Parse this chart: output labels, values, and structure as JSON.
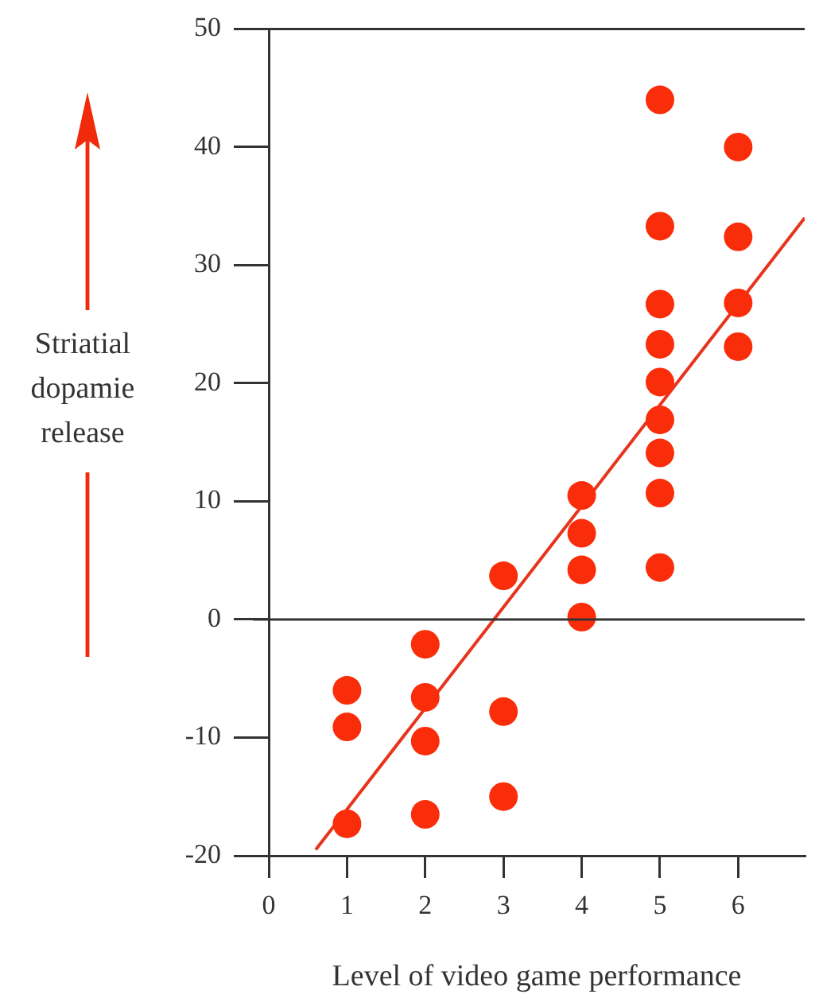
{
  "chart_data": {
    "type": "scatter",
    "xlabel": "Level of video game performance",
    "ylabel": "Striatial dopamie release",
    "xlim": [
      0,
      6.85
    ],
    "ylim": [
      -20,
      50
    ],
    "xticks": [
      0,
      1,
      2,
      3,
      4,
      5,
      6
    ],
    "yticks": [
      -20,
      -10,
      0,
      10,
      20,
      30,
      40,
      50
    ],
    "grid": false,
    "legend": false,
    "marker": "circle",
    "ref_lines": [
      {
        "axis": "y",
        "value": 0,
        "color": "#333333"
      }
    ],
    "series": [
      {
        "color": "#fa2d0a",
        "x": [
          1,
          1,
          1,
          2,
          2,
          2,
          2,
          3,
          3,
          3,
          4,
          4,
          4,
          4,
          5,
          5,
          5,
          5,
          5,
          5,
          5,
          5,
          5,
          6,
          6,
          6,
          6
        ],
        "values": [
          -6,
          -9.1,
          -17.3,
          -2.1,
          -6.6,
          -10.3,
          -16.5,
          3.7,
          -7.8,
          -15,
          10.5,
          7.3,
          4.2,
          0.2,
          44,
          33.3,
          26.7,
          23.3,
          20.1,
          16.9,
          14.1,
          10.7,
          4.4,
          40,
          32.4,
          26.8,
          23.1
        ]
      },
      {
        "type": "line",
        "color": "#e8341c",
        "x": [
          0.6,
          6.85
        ],
        "values": [
          -19.5,
          34
        ],
        "marker": "none"
      }
    ]
  }
}
